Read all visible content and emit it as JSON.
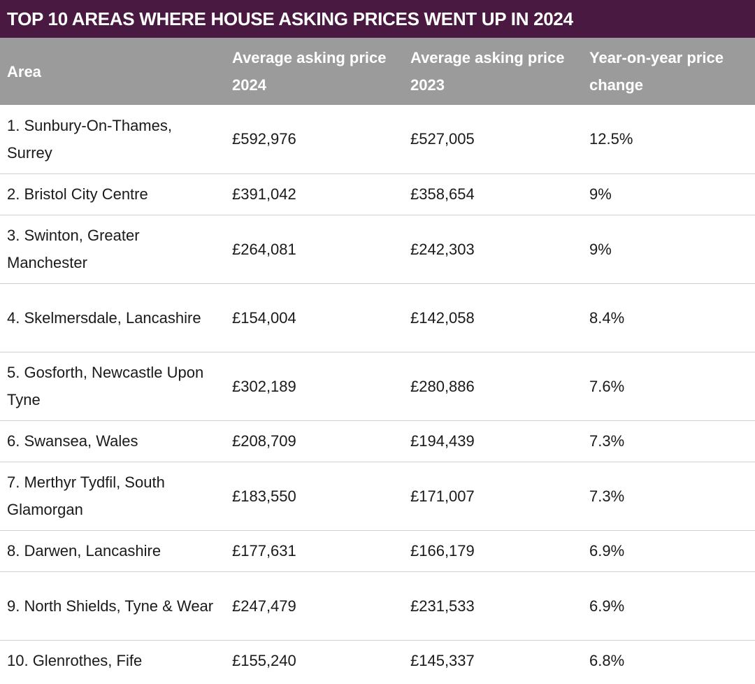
{
  "title": "TOP 10 AREAS WHERE HOUSE ASKING PRICES WENT UP IN 2024",
  "headers": {
    "area": "Area",
    "price_2024": "Average asking price 2024",
    "price_2023": "Average asking price 2023",
    "change": "Year-on-year price change"
  },
  "rows": [
    {
      "area": "1. Sunbury-On-Thames, Surrey",
      "price_2024": "£592,976",
      "price_2023": "£527,005",
      "change": "12.5%"
    },
    {
      "area": "2. Bristol City Centre",
      "price_2024": "£391,042",
      "price_2023": "£358,654",
      "change": "9%"
    },
    {
      "area": "3. Swinton, Greater Manchester",
      "price_2024": "£264,081",
      "price_2023": "£242,303",
      "change": "9%"
    },
    {
      "area": "4. Skelmersdale, Lancashire",
      "price_2024": "£154,004",
      "price_2023": "£142,058",
      "change": "8.4%"
    },
    {
      "area": "5. Gosforth, Newcastle Upon Tyne",
      "price_2024": "£302,189",
      "price_2023": "£280,886",
      "change": "7.6%"
    },
    {
      "area": "6. Swansea, Wales",
      "price_2024": "£208,709",
      "price_2023": "£194,439",
      "change": "7.3%"
    },
    {
      "area": "7. Merthyr Tydfil, South Glamorgan",
      "price_2024": "£183,550",
      "price_2023": "£171,007",
      "change": "7.3%"
    },
    {
      "area": "8. Darwen, Lancashire",
      "price_2024": "£177,631",
      "price_2023": "£166,179",
      "change": "6.9%"
    },
    {
      "area": "9. North Shields, Tyne & Wear",
      "price_2024": "£247,479",
      "price_2023": "£231,533",
      "change": "6.9%"
    },
    {
      "area": "10. Glenrothes, Fife",
      "price_2024": "£155,240",
      "price_2023": "£145,337",
      "change": "6.8%"
    }
  ]
}
